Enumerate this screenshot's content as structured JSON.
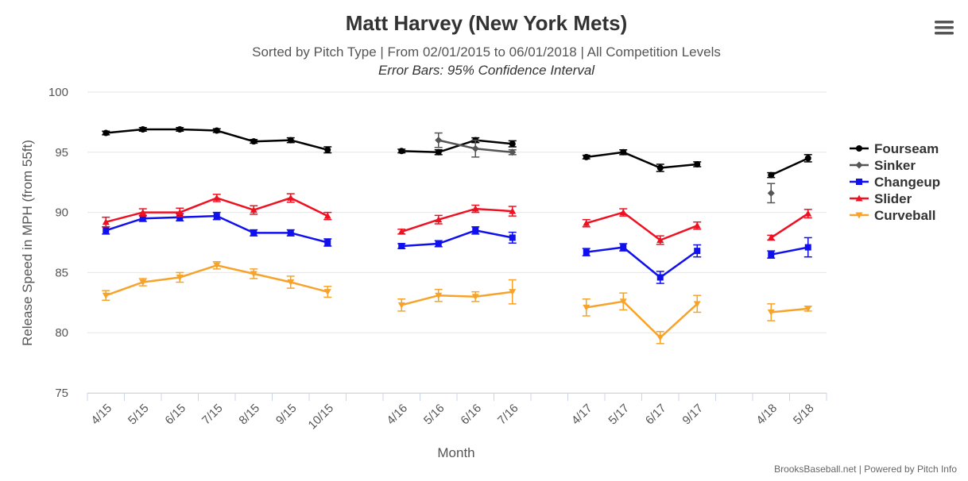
{
  "chart_data": {
    "type": "line",
    "title": "Matt Harvey (New York Mets)",
    "subtitle": "Sorted by Pitch Type | From 02/01/2015 to 06/01/2018 | All Competition Levels",
    "subtitle2": "Error Bars: 95% Confidence Interval",
    "xlabel": "Month",
    "ylabel": "Release Speed in MPH (from 55ft)",
    "ylim": [
      75,
      100
    ],
    "yticks": [
      75,
      80,
      85,
      90,
      95,
      100
    ],
    "categories": [
      "4/15",
      "5/15",
      "6/15",
      "7/15",
      "8/15",
      "9/15",
      "10/15",
      "",
      "4/16",
      "5/16",
      "6/16",
      "7/16",
      "",
      "4/17",
      "5/17",
      "6/17",
      "9/17",
      "",
      "4/18",
      "5/18"
    ],
    "series": [
      {
        "name": "Fourseam",
        "color": "#000000",
        "marker": "circle",
        "values": [
          96.6,
          96.9,
          96.9,
          96.8,
          95.9,
          96.0,
          95.2,
          null,
          95.1,
          95.0,
          96.0,
          95.7,
          null,
          94.6,
          95.0,
          93.7,
          94.0,
          null,
          93.1,
          94.5
        ],
        "errors": [
          0.15,
          0.15,
          0.15,
          0.15,
          0.15,
          0.2,
          0.25,
          null,
          0.15,
          0.2,
          0.2,
          0.25,
          null,
          0.15,
          0.2,
          0.3,
          0.2,
          null,
          0.2,
          0.3
        ]
      },
      {
        "name": "Sinker",
        "color": "#555555",
        "marker": "diamond",
        "values": [
          null,
          null,
          null,
          null,
          null,
          null,
          null,
          null,
          null,
          96.0,
          95.3,
          95.0,
          null,
          null,
          null,
          null,
          null,
          null,
          91.6,
          null
        ],
        "errors": [
          null,
          null,
          null,
          null,
          null,
          null,
          null,
          null,
          null,
          0.6,
          0.7,
          0.2,
          null,
          null,
          null,
          null,
          null,
          null,
          0.8,
          null
        ]
      },
      {
        "name": "Changeup",
        "color": "#1010ee",
        "marker": "square",
        "values": [
          88.5,
          89.5,
          89.6,
          89.7,
          88.3,
          88.3,
          87.5,
          null,
          87.2,
          87.4,
          88.5,
          87.9,
          null,
          86.7,
          87.1,
          84.6,
          86.8,
          null,
          86.5,
          87.1
        ],
        "errors": [
          0.3,
          0.25,
          0.3,
          0.3,
          0.25,
          0.25,
          0.3,
          null,
          0.2,
          0.25,
          0.3,
          0.45,
          null,
          0.3,
          0.3,
          0.5,
          0.5,
          null,
          0.3,
          0.8
        ]
      },
      {
        "name": "Slider",
        "color": "#ee1122",
        "marker": "triangle",
        "values": [
          89.2,
          90.0,
          90.0,
          91.2,
          90.2,
          91.2,
          89.7,
          null,
          88.4,
          89.4,
          90.3,
          90.1,
          null,
          89.1,
          90.0,
          87.7,
          88.9,
          null,
          87.9,
          89.9
        ],
        "errors": [
          0.4,
          0.3,
          0.35,
          0.3,
          0.35,
          0.35,
          0.3,
          null,
          0.2,
          0.35,
          0.3,
          0.4,
          null,
          0.3,
          0.3,
          0.35,
          0.3,
          null,
          0.2,
          0.35
        ]
      },
      {
        "name": "Curveball",
        "color": "#f7a32b",
        "marker": "triangle-down",
        "values": [
          83.1,
          84.2,
          84.6,
          85.6,
          84.9,
          84.2,
          83.4,
          null,
          82.3,
          83.1,
          83.0,
          83.4,
          null,
          82.1,
          82.6,
          79.6,
          82.4,
          null,
          81.7,
          82.0
        ],
        "errors": [
          0.4,
          0.3,
          0.4,
          0.3,
          0.4,
          0.5,
          0.45,
          null,
          0.5,
          0.5,
          0.4,
          1.0,
          null,
          0.7,
          0.7,
          0.5,
          0.7,
          null,
          0.7,
          0.2
        ]
      }
    ],
    "legend_position": "right"
  },
  "credits": "BrooksBaseball.net | Powered by Pitch Info",
  "menu_icon": "hamburger-menu-icon"
}
